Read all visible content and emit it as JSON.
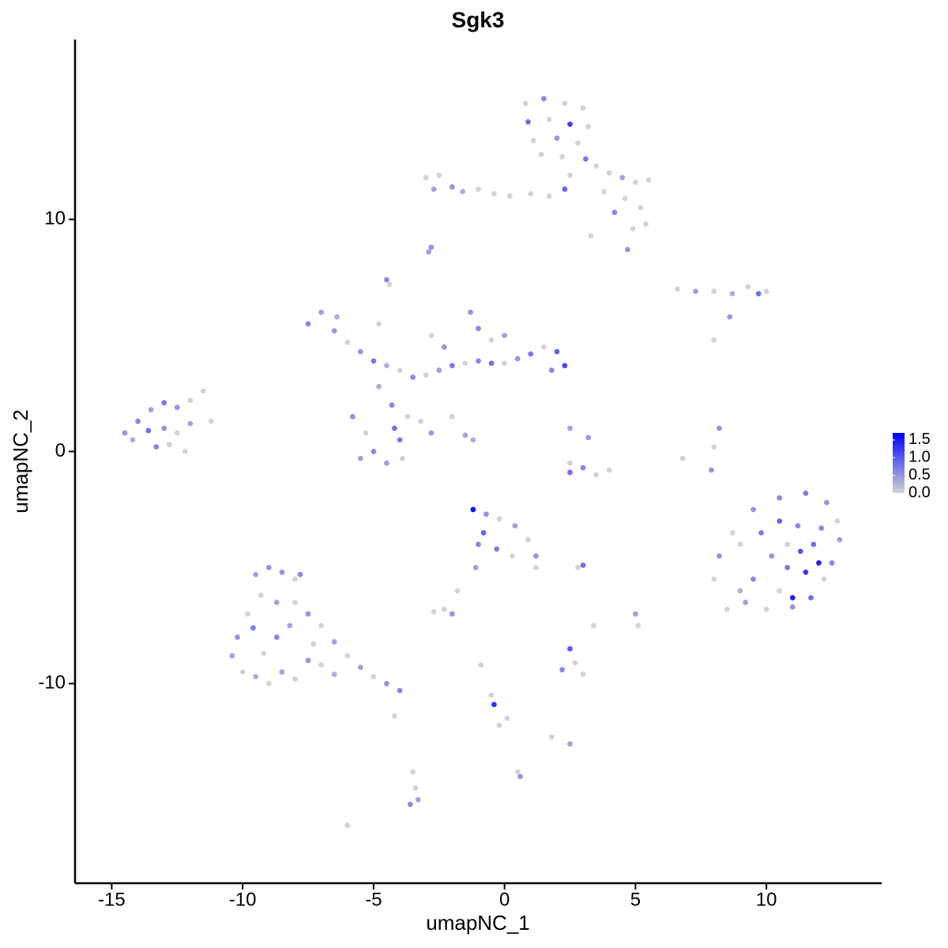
{
  "chart_data": {
    "type": "scatter",
    "title": "Sgk3",
    "xlabel": "umapNC_1",
    "ylabel": "umapNC_2",
    "xlim": [
      -16.4,
      14.4
    ],
    "ylim": [
      -18.6,
      17.75
    ],
    "xticks": [
      -15,
      -10,
      -5,
      0,
      5,
      10
    ],
    "yticks": [
      -10,
      0,
      10
    ],
    "color_low": "#d3d3d3",
    "color_high": "#0000ff",
    "colorbar_lim": [
      0,
      1.7
    ],
    "colorbar_ticks": [
      {
        "value": 0,
        "label": "0.0"
      },
      {
        "value": 0.5,
        "label": "0.5"
      },
      {
        "value": 1,
        "label": "1.0"
      },
      1.5
    ],
    "x": [
      0.8,
      1.5,
      2.3,
      3.0,
      0.9,
      1.7,
      2.5,
      3.2,
      1.1,
      2.0,
      2.8,
      1.4,
      2.2,
      3.1,
      2.5,
      3.5,
      4.0,
      4.5,
      5.0,
      5.5,
      3.8,
      4.6,
      5.2,
      5.4,
      4.9,
      4.2,
      1.7,
      2.3,
      1.0,
      0.2,
      3.3,
      4.7,
      -3.0,
      -2.5,
      -2.0,
      -1.6,
      -1.0,
      -0.4,
      -2.7,
      -2.8,
      -2.9,
      -4.5,
      -4.4,
      6.6,
      7.3,
      8.0,
      8.7,
      9.3,
      9.7,
      10.0,
      8.6,
      8.0,
      -7.5,
      -7.0,
      -6.5,
      -6.0,
      -5.5,
      -5.0,
      -4.5,
      -4.0,
      -3.5,
      -3.0,
      -2.5,
      -2.0,
      -1.5,
      -1.0,
      -0.5,
      0.0,
      0.5,
      1.0,
      1.5,
      2.0,
      2.3,
      1.8,
      -1.3,
      -1.0,
      -0.5,
      0.0,
      -2.8,
      -2.3,
      -4.8,
      -6.4,
      -5.8,
      -5.3,
      -5.0,
      -4.5,
      -4.0,
      -3.7,
      -4.3,
      -4.8,
      -3.2,
      -2.8,
      -2.0,
      -1.5,
      -1.2,
      -3.9,
      -5.5,
      -4.2,
      -14.5,
      -14.0,
      -13.5,
      -13.0,
      -12.5,
      -12.0,
      -11.5,
      -14.2,
      -13.6,
      -13.0,
      -12.5,
      -12.0,
      -11.2,
      -13.3,
      -12.8,
      -12.2,
      3.0,
      3.5,
      4.0,
      2.5,
      3.2,
      2.5,
      8.2,
      8.0,
      7.9,
      6.8,
      2.5,
      9.5,
      10.5,
      11.5,
      12.3,
      12.7,
      12.8,
      12.5,
      12.2,
      11.7,
      11.0,
      10.0,
      9.2,
      8.5,
      8.0,
      8.2,
      9.0,
      9.8,
      10.5,
      11.2,
      11.8,
      11.5,
      10.8,
      10.2,
      9.5,
      10.5,
      11.3,
      12.0,
      11.0,
      10.8,
      9.0,
      8.7,
      12.1,
      -1.2,
      -0.7,
      -0.2,
      0.4,
      0.9,
      1.2,
      1.2,
      -0.8,
      -0.3,
      0.3,
      -1.0,
      -1.1,
      -1.8,
      -2.3,
      -2.0,
      -2.7,
      3.0,
      2.8,
      -9.5,
      -9.0,
      -8.5,
      -8.0,
      -7.8,
      -9.3,
      -8.7,
      -8.0,
      -7.5,
      -7.0,
      -6.5,
      -6.0,
      -5.5,
      -5.0,
      -4.5,
      -4.0,
      -9.8,
      -10.2,
      -10.4,
      -10.0,
      -9.5,
      -9.0,
      -8.5,
      -8.0,
      -7.5,
      -7.0,
      -8.7,
      -9.2,
      -8.2,
      -7.3,
      -6.5,
      -9.6,
      -3.5,
      -3.4,
      -3.6,
      -3.3,
      -6.0,
      -4.2,
      0.5,
      0.6,
      -0.5,
      -0.4,
      -0.2,
      0.1,
      1.8,
      2.5,
      2.2,
      2.7,
      2.5,
      3.0,
      5.1,
      5.0,
      3.4,
      -0.9
    ],
    "y": [
      15.0,
      15.2,
      15.0,
      14.8,
      14.2,
      14.3,
      14.1,
      14.0,
      13.4,
      13.5,
      13.3,
      12.8,
      12.7,
      12.6,
      11.9,
      12.3,
      12.0,
      11.8,
      11.6,
      11.7,
      11.2,
      10.9,
      10.5,
      9.8,
      9.6,
      10.3,
      11.0,
      11.3,
      11.1,
      11.0,
      9.3,
      8.7,
      11.8,
      11.9,
      11.4,
      11.2,
      11.3,
      11.1,
      11.3,
      8.8,
      8.6,
      7.4,
      7.2,
      7.0,
      6.9,
      6.9,
      6.8,
      7.1,
      6.8,
      6.9,
      5.8,
      4.8,
      5.5,
      6.0,
      5.2,
      4.7,
      4.3,
      3.9,
      3.7,
      3.5,
      3.2,
      3.3,
      3.5,
      3.7,
      3.8,
      3.9,
      3.8,
      3.8,
      4.0,
      4.2,
      4.5,
      4.3,
      3.7,
      3.5,
      6.0,
      5.3,
      4.8,
      5.0,
      5.0,
      4.5,
      5.5,
      5.8,
      1.5,
      0.8,
      0,
      -0.5,
      0.5,
      1.5,
      2.0,
      2.8,
      1.3,
      0.8,
      1.5,
      0.7,
      0.5,
      -0.3,
      -0.3,
      1.0,
      0.8,
      1.3,
      1.8,
      2.1,
      1.9,
      2.2,
      2.6,
      0.5,
      0.9,
      1.0,
      0.8,
      1.2,
      1.3,
      0.2,
      0.3,
      0.0,
      -0.7,
      -1.0,
      -0.8,
      -0.5,
      0.6,
      -0.9,
      1.0,
      0.2,
      -0.8,
      -0.3,
      1.0,
      -2.5,
      -2.0,
      -1.8,
      -2.2,
      -3.0,
      -3.8,
      -4.8,
      -5.5,
      -6.3,
      -6.7,
      -6.8,
      -6.5,
      -6.8,
      -5.5,
      -4.5,
      -4.0,
      -3.5,
      -3.0,
      -3.2,
      -4.0,
      -5.2,
      -5.0,
      -4.5,
      -5.5,
      -6.0,
      -4.3,
      -4.8,
      -6.3,
      -4.0,
      -6.0,
      -3.5,
      -3.3,
      -2.5,
      -2.7,
      -2.9,
      -3.2,
      -3.8,
      -4.5,
      -5.0,
      -3.5,
      -4.2,
      -4.5,
      -4.0,
      -5.0,
      -6.0,
      -6.8,
      -7.0,
      -6.9,
      -4.9,
      -5.0,
      -5.3,
      -5.0,
      -5.2,
      -5.5,
      -5.3,
      -6.2,
      -6.5,
      -6.5,
      -7.0,
      -7.5,
      -8.2,
      -8.8,
      -9.3,
      -9.7,
      -10.0,
      -10.3,
      -7.0,
      -8.0,
      -8.8,
      -9.5,
      -9.7,
      -10.0,
      -9.5,
      -9.8,
      -9.0,
      -9.2,
      -8.0,
      -8.7,
      -7.5,
      -8.3,
      -9.6,
      -7.6,
      -13.8,
      -14.5,
      -15.2,
      -15.0,
      -16.1,
      -11.4,
      -13.8,
      -14.0,
      -10.5,
      -10.9,
      -11.8,
      -11.5,
      -12.3,
      -12.6,
      -9.4,
      -9.1,
      -8.5,
      -9.6,
      -7.5,
      -7.0,
      -7.5,
      -9.2
    ],
    "values": [
      0,
      0.6,
      0,
      0,
      0.8,
      0,
      1.2,
      0,
      0,
      0.5,
      0,
      0,
      0,
      0.7,
      0,
      0,
      0,
      0.4,
      0,
      0,
      0,
      0,
      0,
      0,
      0,
      0.6,
      0,
      0.9,
      0,
      0,
      0,
      0.5,
      0,
      0,
      0.5,
      0.3,
      0,
      0,
      0.4,
      0.5,
      0.4,
      0.6,
      0,
      0,
      0.4,
      0,
      0.3,
      0,
      0.8,
      0,
      0.5,
      0,
      0.6,
      0.4,
      0.5,
      0,
      0.5,
      0.7,
      0.3,
      0,
      0.6,
      0,
      0.4,
      0.7,
      0,
      0.6,
      0.8,
      0,
      0.5,
      0.7,
      0,
      0.9,
      1.1,
      0.6,
      0.5,
      0.6,
      0,
      0.4,
      0,
      0.5,
      0,
      0.3,
      0.5,
      0,
      0.6,
      0.4,
      0.7,
      0,
      0.6,
      0.3,
      0,
      0.5,
      0,
      0.4,
      0.3,
      0,
      0.4,
      0.8,
      0.5,
      0.6,
      0.4,
      0.7,
      0.5,
      0,
      0,
      0.3,
      0.8,
      0.5,
      0,
      0.4,
      0,
      0.6,
      0,
      0,
      0.6,
      0,
      0,
      0,
      0.5,
      0.8,
      0.5,
      0,
      0.5,
      0,
      0.4,
      0.5,
      0.6,
      0.7,
      0.5,
      0,
      0.4,
      0.6,
      0,
      0.8,
      0.5,
      0,
      0.4,
      0,
      0,
      0.5,
      0,
      0.7,
      0.9,
      0.6,
      0.8,
      1.2,
      0.7,
      0.5,
      0.6,
      0,
      1.0,
      1.4,
      1.5,
      0,
      0.3,
      0,
      0.6,
      1.6,
      0.5,
      0,
      0.4,
      0,
      0.5,
      0,
      0.9,
      0.7,
      0,
      0.6,
      0.4,
      0,
      0,
      0.5,
      0,
      0.8,
      0,
      0.4,
      0.5,
      0.5,
      0,
      0.6,
      0,
      0.4,
      0,
      0.5,
      0,
      0.4,
      0,
      0.4,
      0,
      0.5,
      0.6,
      0,
      0.5,
      0.4,
      0,
      0.3,
      0,
      0.4,
      0,
      0.5,
      0,
      0.6,
      0,
      0.4,
      0,
      0.3,
      0.7,
      0,
      0,
      0.6,
      0.4,
      0,
      0,
      0,
      0.5,
      0,
      1.3,
      0,
      0,
      0,
      0.4,
      0.6,
      0,
      1.0,
      0,
      0,
      0.4,
      0,
      0
    ]
  }
}
